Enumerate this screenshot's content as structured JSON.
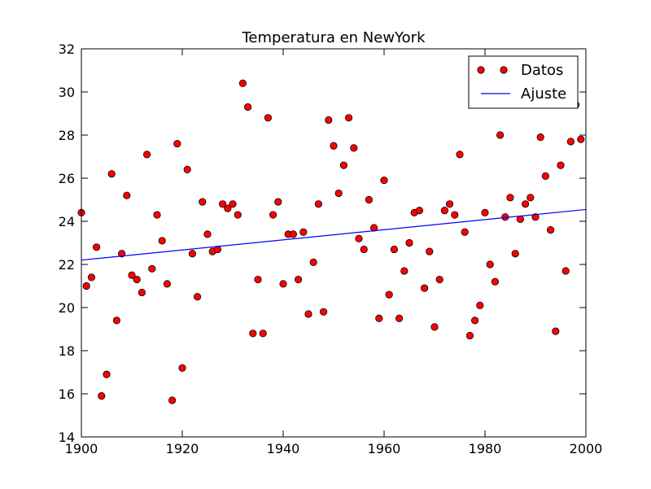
{
  "chart_data": {
    "type": "scatter",
    "title": "Temperatura en NewYork",
    "xlabel": "",
    "ylabel": "",
    "xlim": [
      1900,
      2000
    ],
    "ylim": [
      14,
      32
    ],
    "xticks": [
      "1900",
      "1920",
      "1940",
      "1960",
      "1980",
      "2000"
    ],
    "yticks": [
      "14",
      "16",
      "18",
      "20",
      "22",
      "24",
      "26",
      "28",
      "30",
      "32"
    ],
    "grid": false,
    "legend_position": "top-right",
    "series": [
      {
        "name": "Datos",
        "kind": "scatter",
        "marker_color": "#ff0000",
        "points": [
          [
            1900,
            24.4
          ],
          [
            1901,
            21.0
          ],
          [
            1902,
            21.4
          ],
          [
            1903,
            22.8
          ],
          [
            1904,
            15.9
          ],
          [
            1905,
            16.9
          ],
          [
            1906,
            26.2
          ],
          [
            1907,
            19.4
          ],
          [
            1908,
            22.5
          ],
          [
            1909,
            25.2
          ],
          [
            1910,
            21.5
          ],
          [
            1911,
            21.3
          ],
          [
            1912,
            20.7
          ],
          [
            1913,
            27.1
          ],
          [
            1914,
            21.8
          ],
          [
            1915,
            24.3
          ],
          [
            1916,
            23.1
          ],
          [
            1917,
            21.1
          ],
          [
            1918,
            15.7
          ],
          [
            1919,
            27.6
          ],
          [
            1920,
            17.2
          ],
          [
            1921,
            26.4
          ],
          [
            1922,
            22.5
          ],
          [
            1923,
            20.5
          ],
          [
            1924,
            24.9
          ],
          [
            1925,
            23.4
          ],
          [
            1926,
            22.6
          ],
          [
            1927,
            22.7
          ],
          [
            1928,
            24.8
          ],
          [
            1929,
            24.6
          ],
          [
            1930,
            24.8
          ],
          [
            1931,
            24.3
          ],
          [
            1932,
            30.4
          ],
          [
            1933,
            29.3
          ],
          [
            1934,
            18.8
          ],
          [
            1935,
            21.3
          ],
          [
            1936,
            18.8
          ],
          [
            1937,
            28.8
          ],
          [
            1938,
            24.3
          ],
          [
            1939,
            24.9
          ],
          [
            1940,
            21.1
          ],
          [
            1941,
            23.4
          ],
          [
            1942,
            23.4
          ],
          [
            1943,
            21.3
          ],
          [
            1944,
            23.5
          ],
          [
            1945,
            19.7
          ],
          [
            1946,
            22.1
          ],
          [
            1947,
            24.8
          ],
          [
            1948,
            19.8
          ],
          [
            1949,
            28.7
          ],
          [
            1950,
            27.5
          ],
          [
            1951,
            25.3
          ],
          [
            1952,
            26.6
          ],
          [
            1953,
            28.8
          ],
          [
            1954,
            27.4
          ],
          [
            1955,
            23.2
          ],
          [
            1956,
            22.7
          ],
          [
            1957,
            25.0
          ],
          [
            1958,
            23.7
          ],
          [
            1959,
            19.5
          ],
          [
            1960,
            25.9
          ],
          [
            1961,
            20.6
          ],
          [
            1962,
            22.7
          ],
          [
            1963,
            19.5
          ],
          [
            1964,
            21.7
          ],
          [
            1965,
            23.0
          ],
          [
            1966,
            24.4
          ],
          [
            1967,
            24.5
          ],
          [
            1968,
            20.9
          ],
          [
            1969,
            22.6
          ],
          [
            1970,
            19.1
          ],
          [
            1971,
            21.3
          ],
          [
            1972,
            24.5
          ],
          [
            1973,
            24.8
          ],
          [
            1974,
            24.3
          ],
          [
            1975,
            27.1
          ],
          [
            1976,
            23.5
          ],
          [
            1977,
            18.7
          ],
          [
            1978,
            19.4
          ],
          [
            1979,
            20.1
          ],
          [
            1980,
            24.4
          ],
          [
            1981,
            22.0
          ],
          [
            1982,
            21.2
          ],
          [
            1983,
            28.0
          ],
          [
            1984,
            24.2
          ],
          [
            1985,
            25.1
          ],
          [
            1986,
            22.5
          ],
          [
            1987,
            24.1
          ],
          [
            1988,
            24.8
          ],
          [
            1989,
            25.1
          ],
          [
            1990,
            24.2
          ],
          [
            1991,
            27.9
          ],
          [
            1992,
            26.1
          ],
          [
            1993,
            23.6
          ],
          [
            1994,
            18.9
          ],
          [
            1995,
            26.6
          ],
          [
            1996,
            21.7
          ],
          [
            1997,
            27.7
          ],
          [
            1998,
            29.4
          ],
          [
            1999,
            27.8
          ]
        ]
      },
      {
        "name": "Ajuste",
        "kind": "line",
        "line_color": "#0000ff",
        "points": [
          [
            1900,
            22.2
          ],
          [
            2000,
            24.55
          ]
        ]
      }
    ]
  }
}
